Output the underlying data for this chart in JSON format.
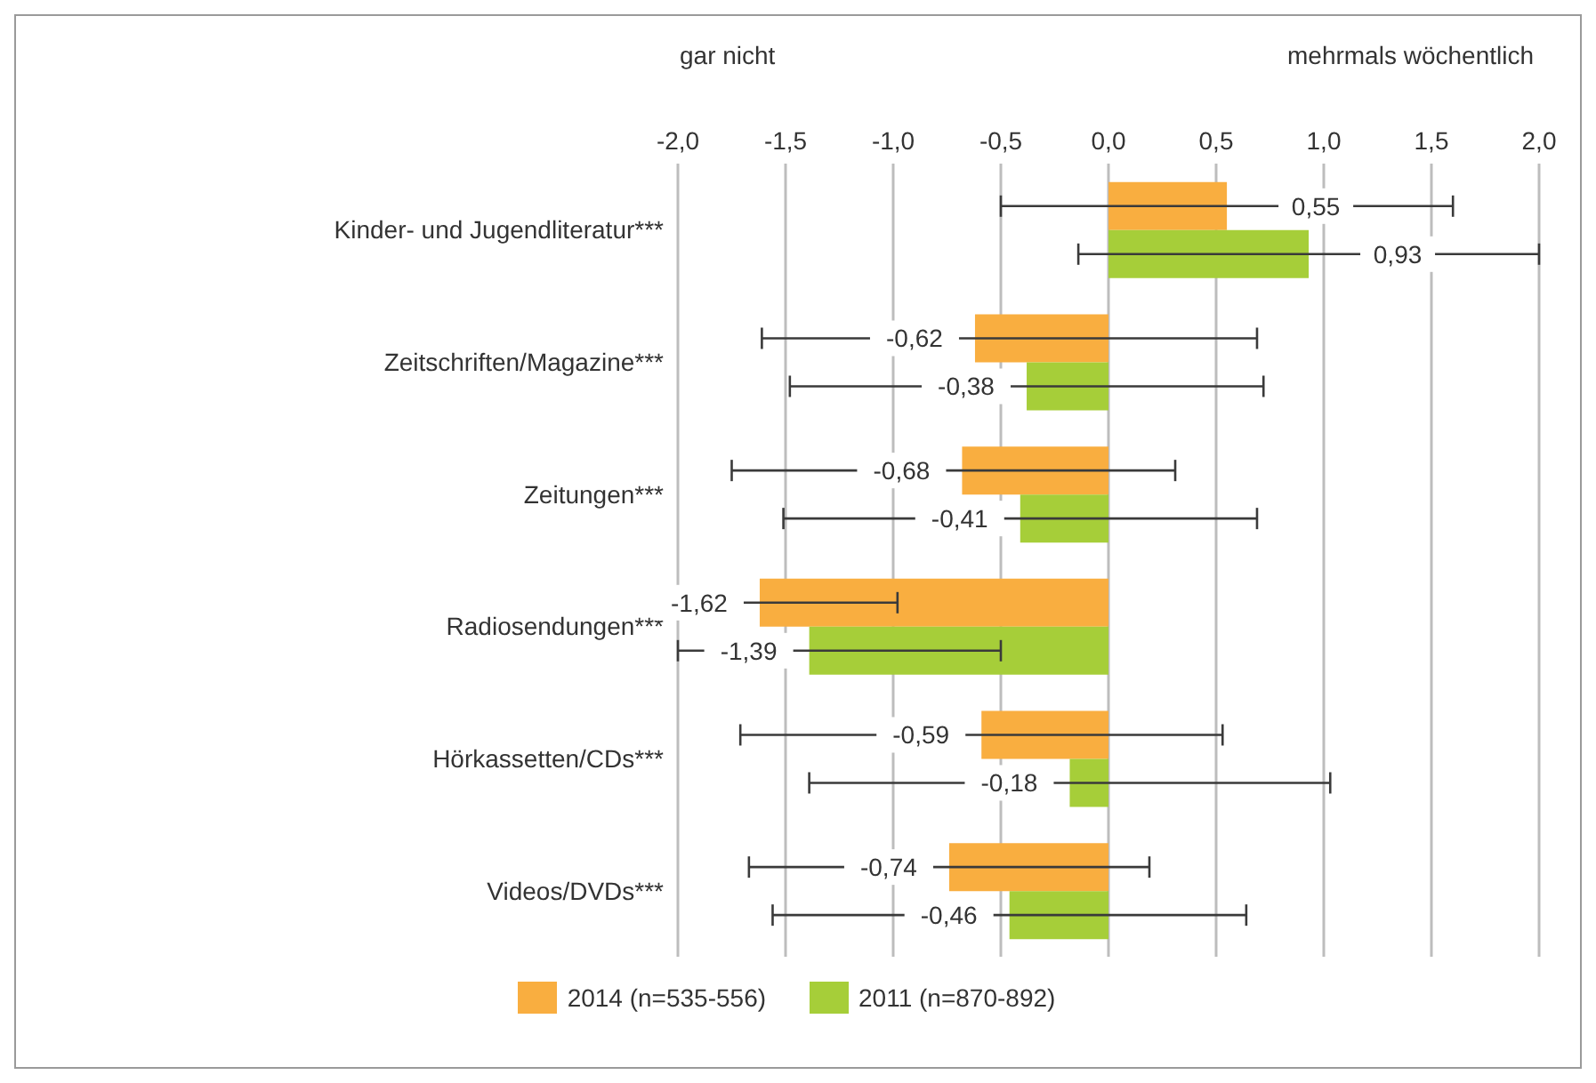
{
  "chart_data": {
    "type": "bar",
    "orientation": "horizontal",
    "annotations": [
      "gar nicht",
      "mehrmals wöchentlich"
    ],
    "categories": [
      "Kinder- und Jugendliteratur***",
      "Zeitschriften/Magazine***",
      "Zeitungen***",
      "Radiosendungen***",
      "Hörkassetten/CDs***",
      "Videos/DVDs***"
    ],
    "series": [
      {
        "name": "2014 (n=535-556)",
        "color": "#f9ae40",
        "values": [
          0.55,
          -0.62,
          -0.68,
          -1.62,
          -0.59,
          -0.74
        ],
        "value_labels": [
          "0,55",
          "-0,62",
          "-0,68",
          "-1,62",
          "-0,59",
          "-0,74"
        ],
        "errors": [
          1.05,
          [
            -1.61,
            0.69
          ],
          [
            -1.75,
            0.31
          ],
          [
            -2.0,
            -0.98
          ],
          1.12,
          0.93
        ]
      },
      {
        "name": "2011 (n=870-892)",
        "color": "#a6ce39",
        "values": [
          0.93,
          -0.38,
          -0.41,
          -1.39,
          -0.18,
          -0.46
        ],
        "value_labels": [
          "0,93",
          "-0,38",
          "-0,41",
          "-1,39",
          "-0,18",
          "-0,46"
        ],
        "errors": [
          1.07,
          1.1,
          1.1,
          [
            -2.0,
            -0.5
          ],
          1.21,
          1.1
        ]
      }
    ],
    "xlim": [
      -2,
      2
    ],
    "xticks": [
      {
        "value": -2,
        "label": "-2,0"
      },
      {
        "value": -1.5,
        "label": "-1,5"
      },
      {
        "value": -1,
        "label": "-1,0"
      },
      {
        "value": -0.5,
        "label": "-0,5"
      },
      {
        "value": 0,
        "label": "0,0"
      },
      {
        "value": 0.5,
        "label": "0,5"
      },
      {
        "value": 1,
        "label": "1,0"
      },
      {
        "value": 1.5,
        "label": "1,5"
      },
      {
        "value": 2,
        "label": "2,0"
      }
    ],
    "grid": "x",
    "legend": "bottom"
  }
}
